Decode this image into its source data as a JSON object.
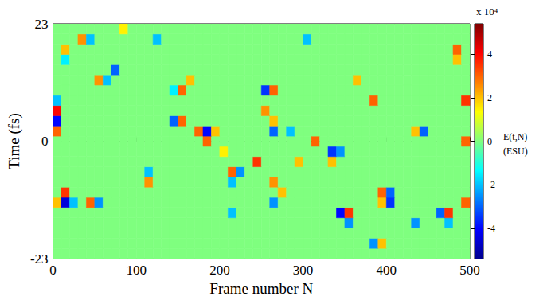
{
  "chart_data": {
    "type": "heatmap",
    "xlabel": "Frame number N",
    "ylabel": "Time (fs)",
    "xlim": [
      0,
      500
    ],
    "xticks": [
      0,
      100,
      200,
      300,
      400,
      500
    ],
    "ylim": [
      -23,
      23
    ],
    "yticks": [
      -23,
      0,
      23
    ],
    "x_bins": [
      0,
      10,
      20,
      30,
      40,
      50,
      60,
      70,
      80,
      90,
      100,
      110,
      120,
      130,
      140,
      150,
      160,
      170,
      180,
      190,
      200,
      210,
      220,
      230,
      240,
      250,
      260,
      270,
      280,
      290,
      300,
      310,
      320,
      330,
      340,
      350,
      360,
      370,
      380,
      390,
      400,
      410,
      420,
      430,
      440,
      450,
      460,
      470,
      480,
      490,
      500
    ],
    "y_bins": [
      -23,
      -21,
      -19,
      -17,
      -15,
      -13,
      -11,
      -9,
      -7,
      -5,
      -3,
      -1,
      1,
      3,
      5,
      7,
      9,
      11,
      13,
      15,
      17,
      19,
      21,
      23
    ],
    "cells": [
      [
        0,
        0,
        0,
        0,
        0,
        0,
        0,
        0,
        0,
        0,
        0,
        0,
        0,
        0,
        0,
        0,
        0,
        0,
        0,
        0,
        0,
        0,
        0,
        0,
        0,
        0,
        0,
        0,
        0,
        0,
        0,
        0,
        0,
        0,
        0,
        0,
        0,
        0,
        0,
        0,
        0,
        0,
        0,
        0,
        0,
        0,
        0,
        0,
        0,
        0
      ],
      [
        0,
        0,
        0,
        0,
        0,
        0,
        0,
        0,
        0,
        0,
        0,
        0,
        0,
        0,
        0,
        0,
        0,
        0,
        0,
        0,
        0,
        0,
        0,
        0,
        0,
        0,
        0,
        0,
        0,
        0,
        0,
        0,
        0,
        0,
        0,
        0,
        0,
        0,
        -2.5,
        2,
        0,
        0,
        0,
        0,
        0,
        0,
        0,
        0,
        0,
        0
      ],
      [
        0,
        0,
        0,
        0,
        0,
        0,
        0,
        0,
        0,
        0,
        0,
        0,
        0,
        0,
        0,
        0,
        0,
        0,
        0,
        0,
        0,
        0,
        0,
        0,
        0,
        0,
        0,
        0,
        0,
        0,
        0,
        0,
        0,
        0,
        0,
        0,
        0,
        0,
        0,
        0,
        0,
        0,
        0,
        0,
        0,
        0,
        0,
        0,
        0,
        0
      ],
      [
        0,
        0,
        0,
        0,
        0,
        0,
        0,
        0,
        0,
        0,
        0,
        0,
        0,
        0,
        0,
        0,
        0,
        0,
        0,
        0,
        0,
        0,
        0,
        0,
        0,
        0,
        0,
        0,
        0,
        0,
        0,
        0,
        0,
        0,
        0,
        -2.5,
        0,
        0,
        0,
        0,
        0,
        0,
        0,
        -2.5,
        0,
        0,
        0,
        -2,
        0,
        0
      ],
      [
        0,
        0,
        0,
        0,
        0,
        0,
        0,
        0,
        0,
        0,
        0,
        0,
        0,
        0,
        0,
        0,
        0,
        0,
        0,
        0,
        0,
        -2,
        0,
        0,
        0,
        0,
        0,
        0,
        0,
        0,
        0,
        0,
        0,
        0,
        -4,
        3.5,
        0,
        0,
        0,
        0,
        0,
        0,
        0,
        0,
        0,
        0,
        -3,
        3.5,
        0,
        0
      ],
      [
        2,
        -4.5,
        -2,
        0,
        3,
        -2.5,
        0,
        0,
        0,
        0,
        0,
        0,
        0,
        0,
        0,
        0,
        0,
        0,
        0,
        0,
        0,
        0,
        0,
        0,
        0,
        0,
        -2.5,
        0,
        0,
        0,
        0,
        0,
        0,
        0,
        0,
        0,
        0,
        0,
        0,
        2,
        -3.5,
        0,
        0,
        0,
        0,
        0,
        0,
        0,
        0,
        3
      ],
      [
        0,
        3.5,
        0,
        0,
        0,
        0,
        0,
        0,
        0,
        0,
        0,
        0,
        0,
        0,
        0,
        0,
        0,
        0,
        0,
        0,
        0,
        0,
        0,
        0,
        0,
        0,
        0,
        2,
        0,
        0,
        0,
        0,
        0,
        0,
        0,
        0,
        0,
        0,
        0,
        3,
        -3,
        0,
        0,
        0,
        0,
        0,
        0,
        0,
        0,
        0
      ],
      [
        0,
        0,
        0,
        0,
        0,
        0,
        0,
        0,
        0,
        0,
        0,
        2.5,
        0,
        0,
        0,
        0,
        0,
        0,
        0,
        0,
        0,
        -2,
        0,
        0,
        0,
        0,
        2.5,
        0,
        0,
        0,
        0,
        0,
        0,
        0,
        0,
        0,
        0,
        0,
        0,
        0,
        0,
        0,
        0,
        0,
        0,
        0,
        0,
        0,
        0,
        0
      ],
      [
        0,
        0,
        0,
        0,
        0,
        0,
        0,
        0,
        0,
        0,
        0,
        -2,
        0,
        0,
        0,
        0,
        0,
        0,
        0,
        0,
        0,
        3,
        -2.5,
        0,
        0,
        0,
        0,
        0,
        0,
        0,
        0,
        0,
        0,
        0,
        0,
        0,
        0,
        0,
        0,
        0,
        0,
        0,
        0,
        0,
        0,
        0,
        0,
        0,
        0,
        0
      ],
      [
        0,
        0,
        0,
        0,
        0,
        0,
        0,
        0,
        0,
        0,
        0,
        0,
        0,
        0,
        0,
        0,
        0,
        0,
        0,
        0,
        0,
        0,
        0,
        0,
        3.5,
        0,
        0,
        0,
        0,
        2,
        0,
        0,
        0,
        2,
        0,
        0,
        0,
        0,
        0,
        0,
        0,
        0,
        0,
        0,
        0,
        0,
        0,
        0,
        0,
        0
      ],
      [
        0,
        0,
        0,
        0,
        0,
        0,
        0,
        0,
        0,
        0,
        0,
        0,
        0,
        0,
        0,
        0,
        0,
        0,
        0,
        0,
        1.5,
        0,
        0,
        0,
        0,
        0,
        0,
        0,
        0,
        0,
        0,
        0,
        0,
        -3.5,
        -2.5,
        0,
        0,
        0,
        0,
        0,
        0,
        0,
        0,
        0,
        0,
        0,
        0,
        0,
        0,
        0
      ],
      [
        0,
        0,
        0,
        0,
        0,
        0,
        0,
        0,
        0,
        0,
        0,
        0,
        0,
        0,
        0,
        0,
        0,
        0,
        3,
        0,
        0,
        0,
        0,
        0,
        0,
        0,
        0,
        0,
        0,
        0,
        0,
        3,
        0,
        0,
        0,
        0,
        0,
        0,
        0,
        0,
        0,
        0,
        0,
        0,
        0,
        0,
        0,
        0,
        0,
        3
      ],
      [
        3,
        0,
        0,
        0,
        0,
        0,
        0,
        0,
        0,
        0,
        0,
        0,
        0,
        0,
        0,
        0,
        0,
        3,
        -4,
        2,
        0,
        0,
        0,
        0,
        0,
        0,
        -3,
        0,
        -2,
        0,
        0,
        0,
        0,
        0,
        0,
        0,
        0,
        0,
        0,
        0,
        0,
        0,
        0,
        2,
        -3,
        0,
        0,
        0,
        0,
        0
      ],
      [
        -4,
        0,
        0,
        0,
        0,
        0,
        0,
        0,
        0,
        0,
        0,
        0,
        0,
        0,
        -3,
        3,
        0,
        0,
        0,
        0,
        0,
        0,
        0,
        0,
        0,
        0,
        2,
        0,
        0,
        0,
        0,
        0,
        0,
        0,
        0,
        0,
        0,
        0,
        0,
        0,
        0,
        0,
        0,
        0,
        0,
        0,
        0,
        0,
        0,
        0
      ],
      [
        4,
        0,
        0,
        0,
        0,
        0,
        0,
        0,
        0,
        0,
        0,
        0,
        0,
        0,
        0,
        0,
        0,
        0,
        0,
        0,
        0,
        0,
        0,
        0,
        0,
        2.5,
        0,
        0,
        0,
        0,
        0,
        0,
        0,
        0,
        0,
        0,
        0,
        0,
        0,
        0,
        0,
        0,
        0,
        0,
        0,
        0,
        0,
        0,
        0,
        0
      ],
      [
        -2,
        0,
        0,
        0,
        0,
        0,
        0,
        0,
        0,
        0,
        0,
        0,
        0,
        0,
        0,
        0,
        0,
        0,
        0,
        0,
        0,
        0,
        0,
        0,
        0,
        0,
        0,
        0,
        0,
        0,
        0,
        0,
        0,
        0,
        0,
        0,
        0,
        0,
        3,
        0,
        0,
        0,
        0,
        0,
        0,
        0,
        0,
        0,
        0,
        3.5
      ],
      [
        0,
        0,
        0,
        0,
        0,
        0,
        0,
        0,
        0,
        0,
        0,
        0,
        0,
        0,
        -1.5,
        3,
        0,
        0,
        0,
        0,
        0,
        0,
        0,
        0,
        0,
        -3.5,
        3,
        0,
        0,
        0,
        0,
        0,
        0,
        0,
        0,
        0,
        0,
        0,
        0,
        0,
        0,
        0,
        0,
        0,
        0,
        0,
        0,
        0,
        0,
        0
      ],
      [
        0,
        0,
        0,
        0,
        0,
        2.5,
        -2,
        0,
        0,
        0,
        0,
        0,
        0,
        0,
        0,
        0,
        2,
        0,
        0,
        0,
        0,
        0,
        0,
        0,
        0,
        0,
        0,
        0,
        0,
        0,
        0,
        0,
        0,
        0,
        0,
        0,
        2,
        0,
        0,
        0,
        0,
        0,
        0,
        0,
        0,
        0,
        0,
        0,
        0,
        0
      ],
      [
        0,
        0,
        0,
        0,
        0,
        0,
        0,
        -3,
        0,
        0,
        0,
        0,
        0,
        0,
        0,
        0,
        0,
        0,
        0,
        0,
        0,
        0,
        0,
        0,
        0,
        0,
        0,
        0,
        0,
        0,
        0,
        0,
        0,
        0,
        0,
        0,
        0,
        0,
        0,
        0,
        0,
        0,
        0,
        0,
        0,
        0,
        0,
        0,
        0,
        0
      ],
      [
        0,
        -1.5,
        0,
        0,
        0,
        0,
        0,
        0,
        0,
        0,
        0,
        0,
        0,
        0,
        0,
        0,
        0,
        0,
        0,
        0,
        0,
        0,
        0,
        0,
        0,
        0,
        0,
        0,
        0,
        0,
        0,
        0,
        0,
        0,
        0,
        0,
        0,
        0,
        0,
        0,
        0,
        0,
        0,
        0,
        0,
        0,
        0,
        0,
        2,
        0
      ],
      [
        0,
        2,
        0,
        0,
        0,
        0,
        0,
        0,
        0,
        0,
        0,
        0,
        0,
        0,
        0,
        0,
        0,
        0,
        0,
        0,
        0,
        0,
        0,
        0,
        0,
        0,
        0,
        0,
        0,
        0,
        0,
        0,
        0,
        0,
        0,
        0,
        0,
        0,
        0,
        0,
        0,
        0,
        0,
        0,
        0,
        0,
        0,
        0,
        3,
        0
      ],
      [
        0,
        0,
        0,
        2.5,
        -2,
        0,
        0,
        0,
        0,
        0,
        0,
        0,
        -2,
        0,
        0,
        0,
        0,
        0,
        0,
        0,
        0,
        0,
        0,
        0,
        0,
        0,
        0,
        0,
        0,
        0,
        -2,
        0,
        0,
        0,
        0,
        0,
        0,
        0,
        0,
        0,
        0,
        0,
        0,
        0,
        0,
        0,
        0,
        0,
        0,
        0
      ],
      [
        0,
        0,
        0,
        0,
        0,
        0,
        0,
        0,
        1.5,
        0,
        0,
        0,
        0,
        0,
        0,
        0,
        0,
        0,
        0,
        0,
        0,
        0,
        0,
        0,
        0,
        0,
        0,
        0,
        0,
        0,
        0,
        0,
        0,
        0,
        0,
        0,
        0,
        0,
        0,
        0,
        0,
        0,
        0,
        0,
        0,
        0,
        0,
        0,
        0,
        0
      ]
    ],
    "colorbar_range": [
      -5.4,
      5.4
    ],
    "colorbar_ticks": [
      -4,
      -2,
      0,
      2,
      4
    ],
    "colorbar_label": [
      "E(t,N)",
      "(ESU)"
    ],
    "colorbar_multiplier": "x 10⁴"
  }
}
